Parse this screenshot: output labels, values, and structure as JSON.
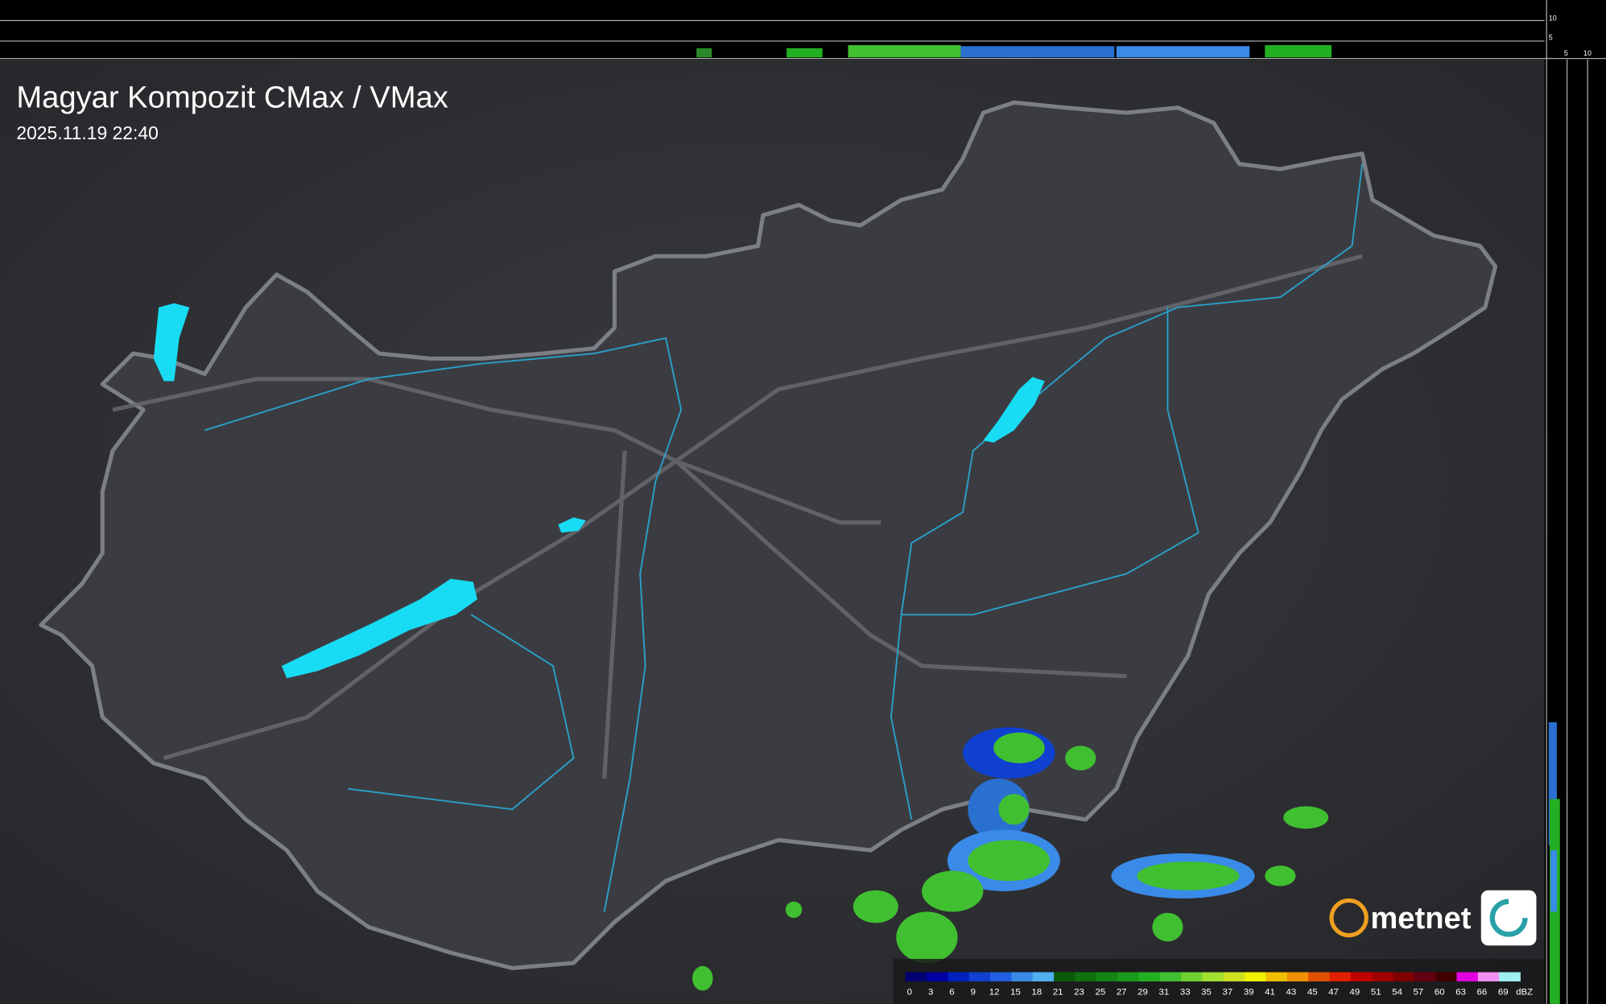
{
  "header": {
    "title": "Magyar Kompozit CMax / VMax",
    "timestamp": "2025.11.19 22:40"
  },
  "profile_axes": {
    "height_ticks": [
      10,
      5
    ],
    "side_ticks": [
      5,
      10
    ]
  },
  "logo": "metnet",
  "legend": {
    "labels": [
      0,
      3,
      6,
      9,
      12,
      15,
      18,
      21,
      23,
      25,
      27,
      29,
      31,
      33,
      35,
      37,
      39,
      41,
      43,
      45,
      47,
      49,
      51,
      54,
      57,
      60,
      63,
      66,
      69
    ],
    "unit": "dBZ",
    "colors": [
      "#000070",
      "#0000a0",
      "#0020c0",
      "#1040d0",
      "#2060e0",
      "#3a8ae8",
      "#50b0f0",
      "#0a5a0a",
      "#0f700f",
      "#148414",
      "#1a9a1a",
      "#22b022",
      "#40c030",
      "#70d030",
      "#a0e030",
      "#d0e020",
      "#f0f000",
      "#f0c000",
      "#f09000",
      "#e05000",
      "#e02000",
      "#c00000",
      "#a00000",
      "#800000",
      "#600010",
      "#400000",
      "#e000e0",
      "#f090f0",
      "#a0f0f0"
    ]
  }
}
